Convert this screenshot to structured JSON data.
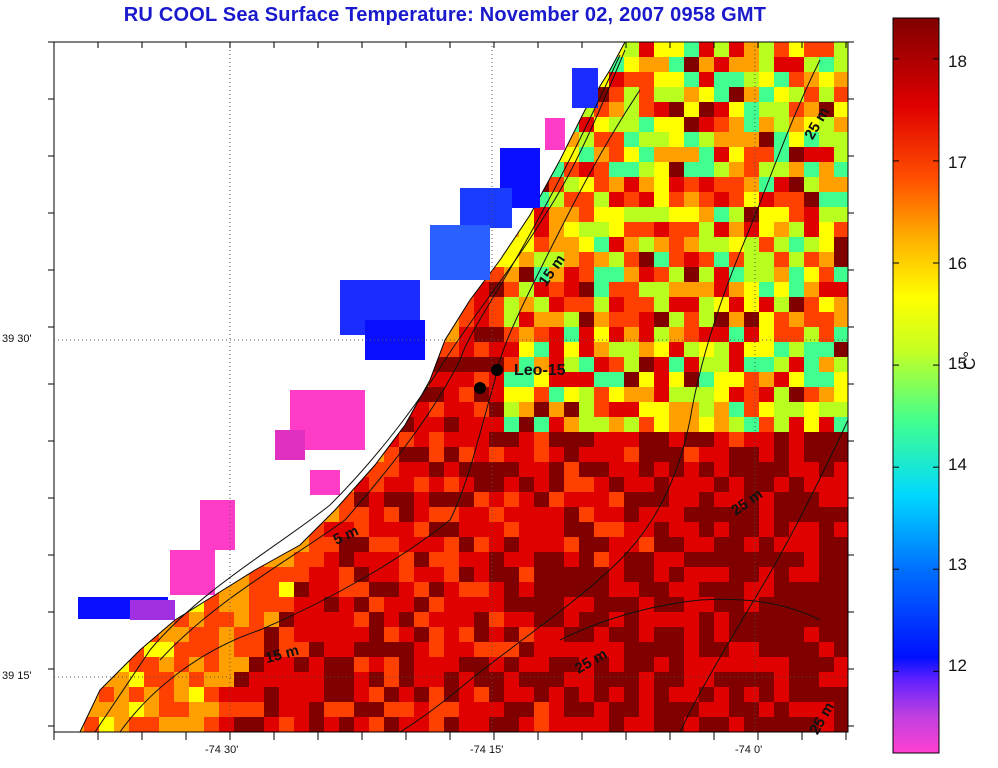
{
  "title": "RU COOL  Sea Surface Temperature:  November 02, 2007 0958 GMT",
  "axes": {
    "lon_ticks": [
      "-74 30'",
      "-74 15'",
      "-74 0'"
    ],
    "lat_ticks": [
      "39 30'",
      "39 15'"
    ]
  },
  "colorbar": {
    "unit": "C°",
    "ticks": [
      "18",
      "17",
      "16",
      "15",
      "14",
      "13",
      "12"
    ],
    "range": [
      11.2,
      18.4
    ],
    "colors": [
      "#ff40d0",
      "#8020ff",
      "#0010ff",
      "#0080ff",
      "#00e8ff",
      "#40ff90",
      "#b8ff20",
      "#ffff00",
      "#ffa000",
      "#ff4000",
      "#e00000",
      "#800000"
    ]
  },
  "station": {
    "label": "Leo-15"
  },
  "contour_labels": [
    "5 m",
    "15 m",
    "15 m",
    "25 m",
    "25 m",
    "25 m",
    "25 m"
  ],
  "land_color": "#ffffff",
  "ocean_colors": {
    "cool": "#2040ff",
    "mid": "#ffd000",
    "warm": "#e02000"
  }
}
